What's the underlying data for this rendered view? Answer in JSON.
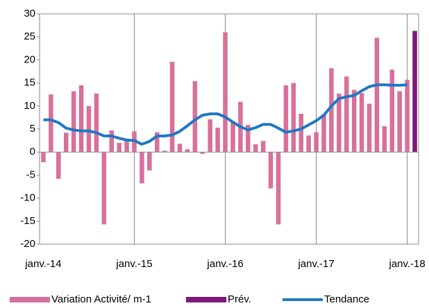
{
  "chart_data": {
    "type": "bar",
    "categories": [
      "janv.-14",
      null,
      null,
      null,
      null,
      null,
      null,
      null,
      null,
      null,
      null,
      null,
      "janv.-15",
      null,
      null,
      null,
      null,
      null,
      null,
      null,
      null,
      null,
      null,
      null,
      "janv.-16",
      null,
      null,
      null,
      null,
      null,
      null,
      null,
      null,
      null,
      null,
      null,
      "janv.-17",
      null,
      null,
      null,
      null,
      null,
      null,
      null,
      null,
      null,
      null,
      null,
      "janv.-18",
      null
    ],
    "series": [
      {
        "name": "Variation Activité/ m-1",
        "color": "#d6719b",
        "kind": "bar",
        "values": [
          -2.2,
          12.5,
          -5.8,
          4.2,
          13.2,
          14.5,
          10,
          12.7,
          -15.7,
          4.7,
          2,
          2.4,
          4.5,
          -6.8,
          -4,
          4.3,
          0.3,
          19.6,
          1.8,
          0.6,
          15.4,
          -0.4,
          7.1,
          5.3,
          26,
          6.5,
          10.9,
          5.9,
          1.7,
          2.4,
          -7.9,
          -15.7,
          14.5,
          15,
          8.3,
          3.6,
          4.3,
          8.2,
          18.2,
          12.7,
          16.4,
          13.5,
          12.8,
          10.5,
          24.8,
          5.6,
          17.9,
          13.2,
          15.7,
          null
        ]
      },
      {
        "name": "Prév.",
        "color": "#7b1a78",
        "kind": "bar",
        "values": [
          null,
          null,
          null,
          null,
          null,
          null,
          null,
          null,
          null,
          null,
          null,
          null,
          null,
          null,
          null,
          null,
          null,
          null,
          null,
          null,
          null,
          null,
          null,
          null,
          null,
          null,
          null,
          null,
          null,
          null,
          null,
          null,
          null,
          null,
          null,
          null,
          null,
          null,
          null,
          null,
          null,
          null,
          null,
          null,
          null,
          null,
          null,
          null,
          null,
          26.3
        ]
      },
      {
        "name": "Tendance",
        "color": "#1f77c4",
        "kind": "line",
        "values": [
          7.0,
          7.0,
          6.4,
          5.2,
          4.8,
          4.6,
          4.6,
          4.2,
          3.5,
          3.5,
          3.0,
          2.6,
          2.5,
          1.7,
          2.3,
          3.5,
          3.5,
          3.7,
          4.5,
          5.7,
          7.0,
          8.0,
          8.3,
          8.3,
          7.6,
          6.5,
          5.5,
          4.8,
          5.3,
          6.0,
          6.0,
          5.2,
          4.3,
          4.6,
          5.0,
          5.9,
          6.8,
          8.0,
          10.0,
          11.6,
          12.0,
          12.3,
          13.3,
          14.2,
          14.6,
          14.6,
          14.5,
          14.5,
          14.6,
          null
        ]
      }
    ],
    "ylim": [
      -20,
      30
    ],
    "yticks": [
      -20,
      -15,
      -10,
      -5,
      0,
      5,
      10,
      15,
      20,
      25,
      30
    ],
    "grid": false,
    "legend": "bottom"
  }
}
